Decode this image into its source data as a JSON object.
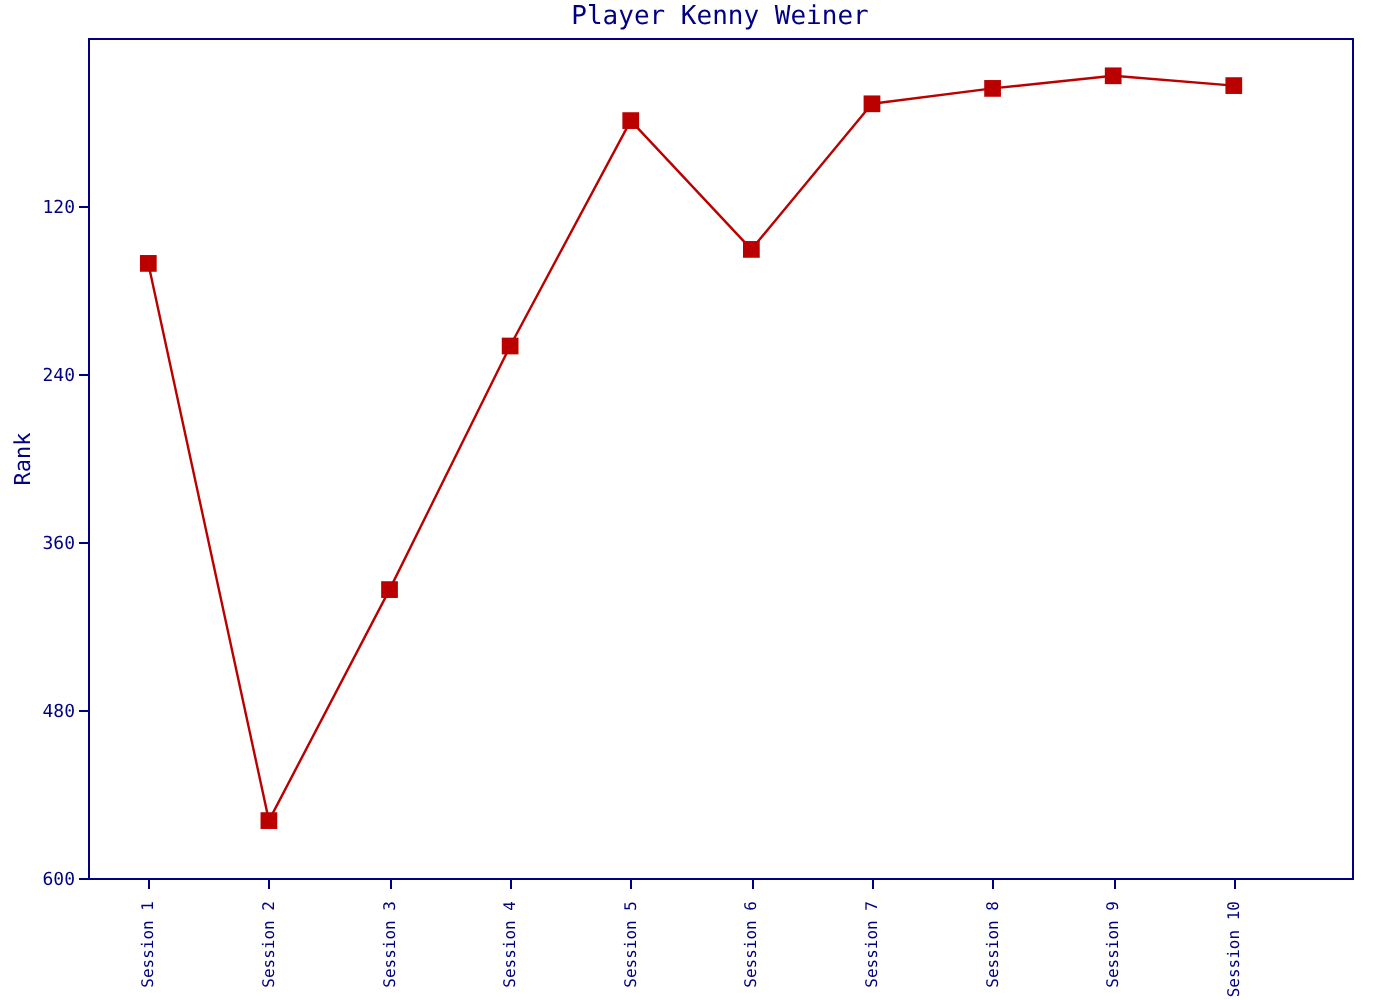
{
  "chart_data": {
    "type": "line",
    "title": "Player Kenny Weiner",
    "ylabel": "Rank",
    "categories": [
      "Session 1",
      "Session 2",
      "Session 3",
      "Session 4",
      "Session 5",
      "Session 6",
      "Session 7",
      "Session 8",
      "Session 9",
      "Session 10"
    ],
    "series": [
      {
        "color": "#bb0000",
        "values": [
          161,
          559,
          394,
          220,
          59,
          151,
          47,
          36,
          27,
          34
        ]
      }
    ],
    "ylim": [
      600,
      0
    ],
    "yticks": [
      120,
      240,
      360,
      480,
      600
    ],
    "marker": "square",
    "line_style": "solid",
    "grid": false
  }
}
